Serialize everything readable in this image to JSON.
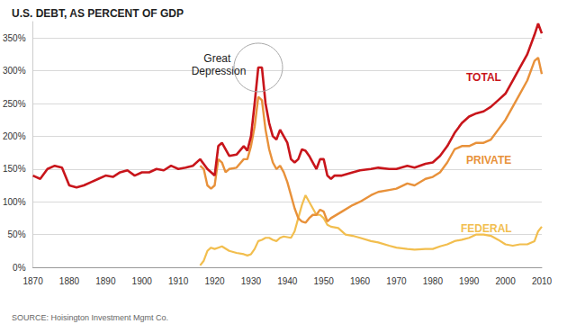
{
  "chart_data": {
    "type": "line",
    "title": "U.S. DEBT, AS PERCENT OF GDP",
    "source": "SOURCE: Hoisington Investment Mgmt Co.",
    "annotations": [
      {
        "text": "Great Depression",
        "x": 1932,
        "y": 305
      }
    ],
    "xlim": [
      1870,
      2010
    ],
    "xticks": [
      1870,
      1880,
      1890,
      1900,
      1910,
      1920,
      1930,
      1940,
      1950,
      1960,
      1970,
      1980,
      1990,
      2000,
      2010
    ],
    "ylim": [
      0,
      375
    ],
    "yticks": [
      {
        "value": 0,
        "label": "0%"
      },
      {
        "value": 50,
        "label": "50%"
      },
      {
        "value": 100,
        "label": "100%"
      },
      {
        "value": 150,
        "label": "150%"
      },
      {
        "value": 200,
        "label": "200%"
      },
      {
        "value": 250,
        "label": "250%"
      },
      {
        "value": 300,
        "label": "300%"
      },
      {
        "value": 350,
        "label": "350%"
      }
    ],
    "grid": true,
    "series": [
      {
        "name": "TOTAL",
        "color": "#c8151b",
        "x": [
          1870,
          1872,
          1874,
          1876,
          1878,
          1880,
          1882,
          1884,
          1886,
          1888,
          1890,
          1892,
          1894,
          1896,
          1898,
          1900,
          1902,
          1904,
          1906,
          1908,
          1910,
          1912,
          1914,
          1916,
          1918,
          1920,
          1921,
          1922,
          1924,
          1926,
          1928,
          1929,
          1930,
          1931,
          1932,
          1933,
          1934,
          1935,
          1936,
          1937,
          1938,
          1939,
          1940,
          1941,
          1942,
          1943,
          1944,
          1945,
          1946,
          1947,
          1948,
          1949,
          1950,
          1951,
          1952,
          1953,
          1955,
          1958,
          1960,
          1963,
          1965,
          1968,
          1970,
          1973,
          1975,
          1978,
          1980,
          1982,
          1984,
          1986,
          1988,
          1990,
          1992,
          1994,
          1996,
          1998,
          2000,
          2002,
          2004,
          2006,
          2008,
          2009,
          2010
        ],
        "values": [
          140,
          135,
          150,
          155,
          152,
          125,
          122,
          125,
          130,
          135,
          140,
          138,
          145,
          148,
          140,
          145,
          145,
          150,
          148,
          155,
          150,
          152,
          155,
          165,
          150,
          140,
          185,
          190,
          170,
          172,
          185,
          178,
          200,
          250,
          305,
          305,
          250,
          220,
          200,
          195,
          210,
          200,
          190,
          165,
          160,
          165,
          180,
          178,
          170,
          160,
          150,
          165,
          165,
          140,
          135,
          140,
          140,
          145,
          148,
          150,
          152,
          150,
          150,
          155,
          152,
          158,
          160,
          170,
          185,
          205,
          220,
          230,
          235,
          238,
          245,
          255,
          265,
          285,
          305,
          325,
          355,
          372,
          357
        ]
      },
      {
        "name": "PRIVATE",
        "color": "#e8913a",
        "x": [
          1916,
          1917,
          1918,
          1919,
          1920,
          1921,
          1922,
          1923,
          1924,
          1926,
          1928,
          1929,
          1930,
          1931,
          1932,
          1933,
          1934,
          1935,
          1936,
          1937,
          1938,
          1939,
          1940,
          1941,
          1942,
          1943,
          1944,
          1945,
          1946,
          1947,
          1948,
          1949,
          1950,
          1951,
          1952,
          1955,
          1958,
          1960,
          1963,
          1965,
          1968,
          1970,
          1973,
          1975,
          1978,
          1980,
          1982,
          1984,
          1986,
          1988,
          1990,
          1992,
          1994,
          1996,
          1998,
          2000,
          2002,
          2004,
          2006,
          2008,
          2009,
          2010
        ],
        "values": [
          155,
          150,
          125,
          120,
          125,
          165,
          160,
          145,
          150,
          152,
          165,
          165,
          185,
          215,
          260,
          255,
          210,
          180,
          160,
          150,
          155,
          145,
          130,
          110,
          90,
          75,
          70,
          68,
          75,
          80,
          80,
          88,
          85,
          70,
          75,
          85,
          95,
          100,
          110,
          115,
          118,
          120,
          128,
          125,
          135,
          138,
          145,
          160,
          180,
          185,
          185,
          190,
          190,
          195,
          210,
          225,
          245,
          265,
          285,
          315,
          320,
          295
        ]
      },
      {
        "name": "FEDERAL",
        "color": "#f2be4e",
        "x": [
          1916,
          1917,
          1918,
          1919,
          1920,
          1921,
          1922,
          1924,
          1926,
          1928,
          1929,
          1930,
          1931,
          1932,
          1933,
          1934,
          1935,
          1936,
          1937,
          1938,
          1939,
          1940,
          1941,
          1942,
          1943,
          1944,
          1945,
          1946,
          1947,
          1948,
          1949,
          1950,
          1951,
          1952,
          1954,
          1956,
          1958,
          1960,
          1963,
          1965,
          1968,
          1970,
          1973,
          1975,
          1978,
          1980,
          1982,
          1984,
          1986,
          1988,
          1990,
          1992,
          1994,
          1996,
          1998,
          2000,
          2002,
          2004,
          2006,
          2008,
          2009,
          2010
        ],
        "values": [
          3,
          10,
          25,
          30,
          28,
          30,
          32,
          25,
          22,
          20,
          18,
          20,
          28,
          40,
          42,
          45,
          45,
          42,
          40,
          45,
          47,
          46,
          45,
          55,
          75,
          95,
          110,
          100,
          90,
          80,
          80,
          75,
          65,
          62,
          60,
          50,
          48,
          45,
          40,
          38,
          33,
          30,
          28,
          27,
          28,
          28,
          32,
          35,
          40,
          42,
          45,
          50,
          50,
          48,
          42,
          35,
          33,
          35,
          35,
          40,
          55,
          62
        ]
      }
    ]
  }
}
